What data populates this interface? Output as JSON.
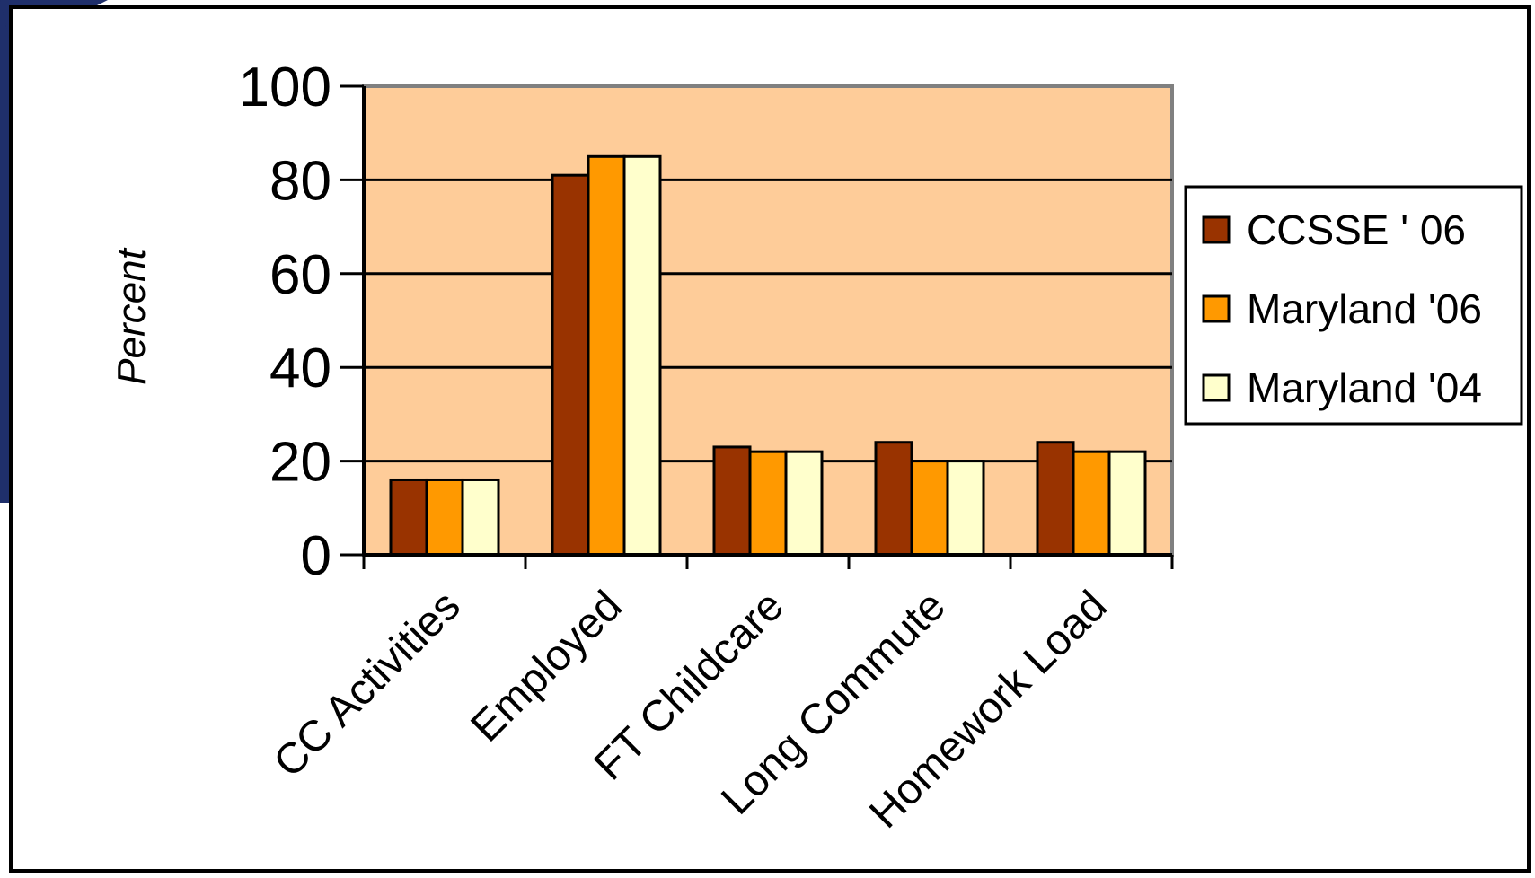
{
  "colors": {
    "plot_bg": "#FECC99",
    "ccsse_06": "#993300",
    "maryland_06": "#FF9900",
    "maryland_04": "#FFFFCC",
    "decor_blue": "#1F2F6B"
  },
  "chart_data": {
    "type": "bar",
    "title": "",
    "xlabel": "",
    "ylabel": "Percent",
    "ylim": [
      0,
      100
    ],
    "yticks": [
      "0",
      "20",
      "40",
      "60",
      "80",
      "100"
    ],
    "grid": true,
    "legend_position": "right",
    "categories": [
      "CC Activities",
      "Employed",
      "FT Childcare",
      "Long Commute",
      "Homework Load"
    ],
    "series": [
      {
        "name": "CCSSE ' 06",
        "color": "#993300",
        "values": [
          16,
          81,
          23,
          24,
          24
        ]
      },
      {
        "name": "Maryland '06",
        "color": "#FF9900",
        "values": [
          16,
          85,
          22,
          20,
          22
        ]
      },
      {
        "name": "Maryland '04",
        "color": "#FFFFCC",
        "values": [
          16,
          85,
          22,
          20,
          22
        ]
      }
    ]
  }
}
